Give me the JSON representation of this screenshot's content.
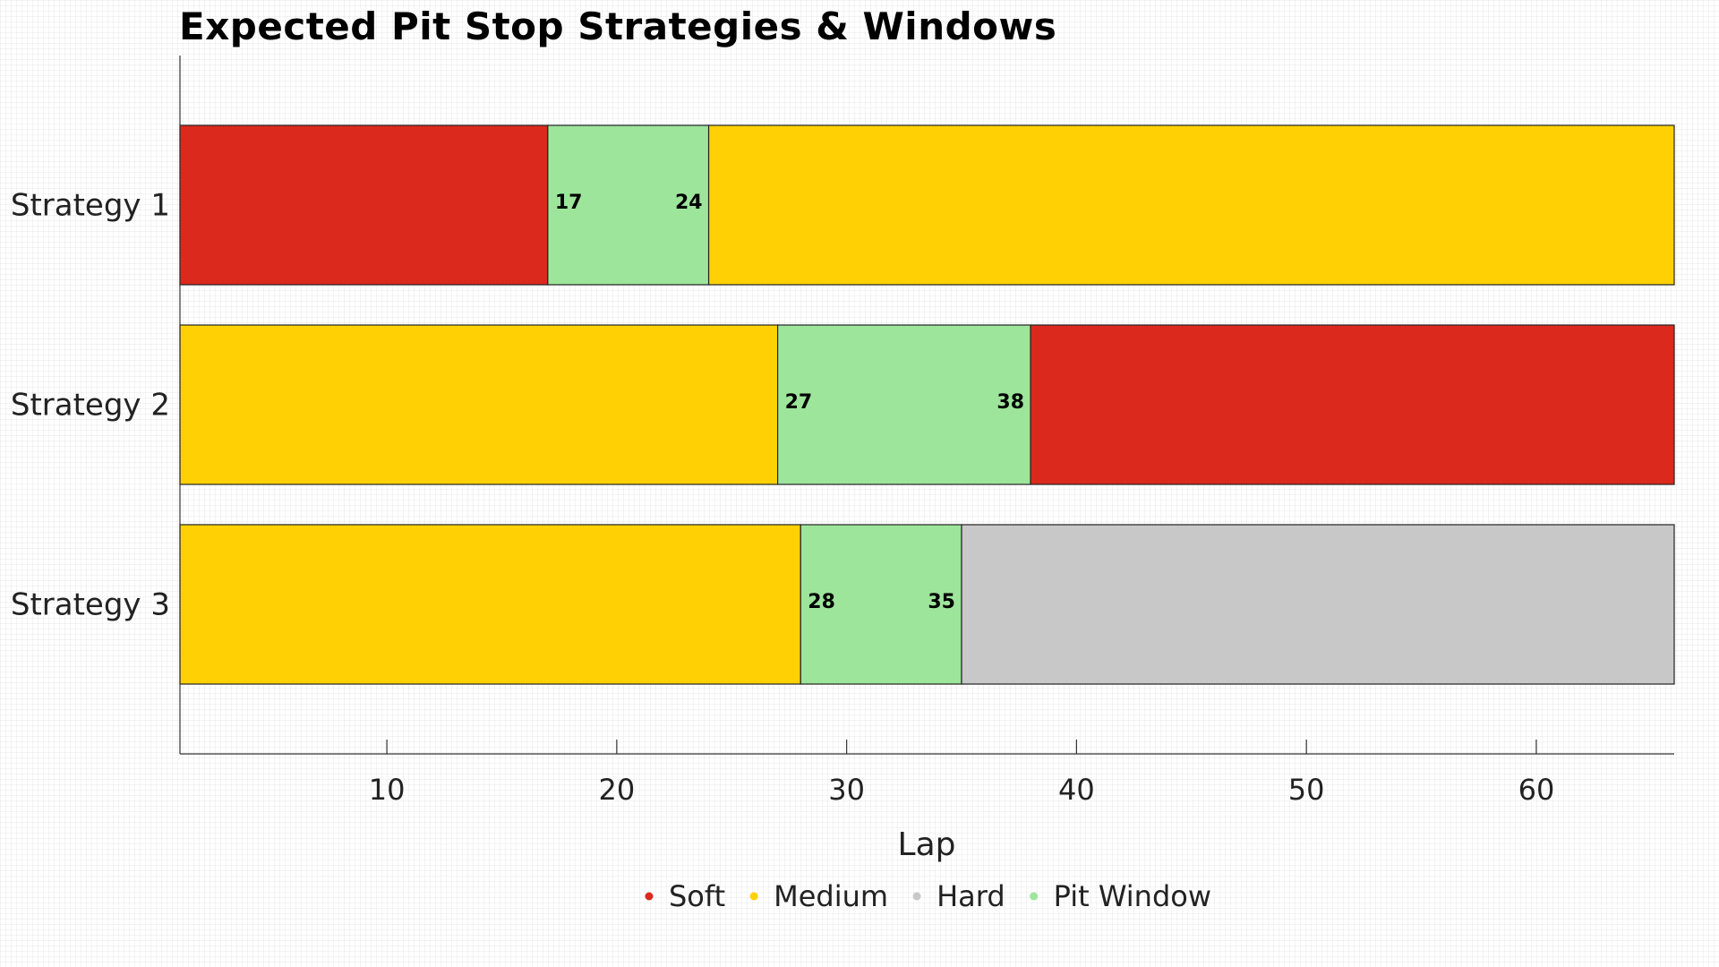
{
  "chart_data": {
    "type": "bar",
    "orientation": "horizontal-stacked",
    "title": "Expected Pit Stop Strategies & Windows",
    "xlabel": "Lap",
    "ylabel": "",
    "xlim": [
      1,
      66
    ],
    "xticks": [
      10,
      20,
      30,
      40,
      50,
      60
    ],
    "grid": false,
    "legend_position": "bottom",
    "categories": [
      "Strategy 1",
      "Strategy 2",
      "Strategy 3"
    ],
    "compounds": [
      {
        "name": "Soft",
        "color": "#db291d"
      },
      {
        "name": "Medium",
        "color": "#ffd104"
      },
      {
        "name": "Hard",
        "color": "#c8c8c8"
      },
      {
        "name": "Pit Window",
        "color": "#9de59b"
      }
    ],
    "strategies": [
      {
        "name": "Strategy 1",
        "segments": [
          {
            "compound": "Soft",
            "start": 1,
            "end": 17
          },
          {
            "compound": "Pit Window",
            "start": 17,
            "end": 24
          },
          {
            "compound": "Medium",
            "start": 24,
            "end": 66
          }
        ],
        "window": {
          "open": 17,
          "close": 24
        }
      },
      {
        "name": "Strategy 2",
        "segments": [
          {
            "compound": "Medium",
            "start": 1,
            "end": 27
          },
          {
            "compound": "Pit Window",
            "start": 27,
            "end": 38
          },
          {
            "compound": "Soft",
            "start": 38,
            "end": 66
          }
        ],
        "window": {
          "open": 27,
          "close": 38
        }
      },
      {
        "name": "Strategy 3",
        "segments": [
          {
            "compound": "Medium",
            "start": 1,
            "end": 28
          },
          {
            "compound": "Pit Window",
            "start": 28,
            "end": 35
          },
          {
            "compound": "Hard",
            "start": 35,
            "end": 66
          }
        ],
        "window": {
          "open": 28,
          "close": 35
        }
      }
    ]
  }
}
